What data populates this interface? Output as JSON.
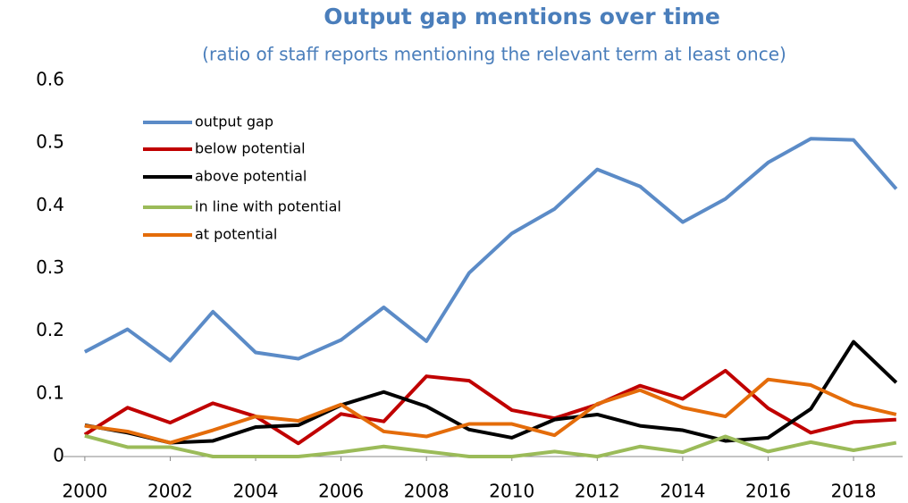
{
  "chart_data": {
    "type": "line",
    "title": "Output gap mentions over time",
    "subtitle": "(ratio of staff reports mentioning the relevant term at least once)",
    "x": [
      2000,
      2001,
      2002,
      2003,
      2004,
      2005,
      2006,
      2007,
      2008,
      2009,
      2010,
      2011,
      2012,
      2013,
      2014,
      2015,
      2016,
      2017,
      2018,
      2019
    ],
    "xlim": [
      1999.5,
      2019.15
    ],
    "xticks": [
      2000,
      2002,
      2004,
      2006,
      2008,
      2010,
      2012,
      2014,
      2016,
      2018
    ],
    "ylim": [
      0,
      0.6
    ],
    "yticks": [
      0,
      0.1,
      0.2,
      0.3,
      0.4,
      0.5,
      0.6
    ],
    "legend": "top-left",
    "series": [
      {
        "name": "output gap",
        "color": "#5b8bc7",
        "values": [
          0.167,
          0.203,
          0.153,
          0.231,
          0.166,
          0.156,
          0.186,
          0.238,
          0.184,
          0.293,
          0.356,
          0.395,
          0.458,
          0.431,
          0.374,
          0.411,
          0.469,
          0.507,
          0.505,
          0.427
        ]
      },
      {
        "name": "below potential",
        "color": "#c00000",
        "values": [
          0.035,
          0.078,
          0.054,
          0.085,
          0.064,
          0.021,
          0.068,
          0.056,
          0.128,
          0.121,
          0.074,
          0.061,
          0.083,
          0.113,
          0.092,
          0.137,
          0.077,
          0.038,
          0.055,
          0.059
        ]
      },
      {
        "name": "above potential",
        "color": "#000000",
        "values": [
          0.05,
          0.038,
          0.022,
          0.025,
          0.047,
          0.05,
          0.082,
          0.103,
          0.08,
          0.043,
          0.03,
          0.059,
          0.067,
          0.049,
          0.042,
          0.025,
          0.03,
          0.076,
          0.183,
          0.118
        ]
      },
      {
        "name": "in line with potential",
        "color": "#9bbb59",
        "values": [
          0.033,
          0.015,
          0.015,
          0,
          0,
          0,
          0.007,
          0.016,
          0.008,
          0,
          0,
          0.008,
          0,
          0.016,
          0.007,
          0.032,
          0.008,
          0.023,
          0.01,
          0.022
        ]
      },
      {
        "name": "at potential",
        "color": "#e46c0a",
        "values": [
          0.049,
          0.04,
          0.022,
          0.042,
          0.064,
          0.057,
          0.083,
          0.04,
          0.032,
          0.052,
          0.052,
          0.034,
          0.084,
          0.106,
          0.078,
          0.064,
          0.123,
          0.114,
          0.083,
          0.067
        ]
      }
    ]
  }
}
